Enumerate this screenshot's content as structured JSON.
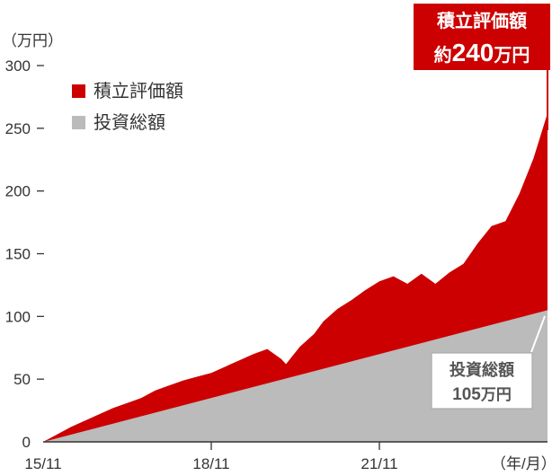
{
  "chart_data": {
    "type": "area",
    "y_unit_label": "（万円）",
    "x_unit_label": "（年/月）",
    "ylim": [
      0,
      300
    ],
    "yticks": [
      "0",
      "50",
      "100",
      "150",
      "200",
      "250",
      "300"
    ],
    "xticks": [
      "15/11",
      "18/11",
      "21/11"
    ],
    "xlim": [
      "15/11",
      "24/11"
    ],
    "grid": false,
    "legend_position": "top-left",
    "legend": [
      "積立評価額",
      "投資総額"
    ],
    "colors": {
      "valuation": "#cc0000",
      "invested": "#bbbbbb",
      "axis": "#333333"
    },
    "series": [
      {
        "name": "積立評価額",
        "x": [
          "15/11",
          "16/02",
          "16/05",
          "16/08",
          "16/11",
          "17/02",
          "17/05",
          "17/08",
          "17/11",
          "18/02",
          "18/05",
          "18/08",
          "18/11",
          "19/02",
          "19/05",
          "19/08",
          "19/11",
          "20/02",
          "20/03",
          "20/06",
          "20/09",
          "20/11",
          "21/02",
          "21/05",
          "21/08",
          "21/11",
          "22/02",
          "22/05",
          "22/08",
          "22/11",
          "23/02",
          "23/05",
          "23/08",
          "23/11",
          "24/02",
          "24/05",
          "24/08",
          "24/11"
        ],
        "values": [
          0,
          6,
          12,
          17,
          22,
          27,
          31,
          35,
          41,
          45,
          49,
          52,
          55,
          60,
          65,
          70,
          74,
          66,
          62,
          76,
          86,
          96,
          106,
          113,
          121,
          128,
          132,
          126,
          134,
          126,
          135,
          142,
          158,
          172,
          176,
          198,
          226,
          262
        ]
      },
      {
        "name": "投資総額",
        "x": [
          "15/11",
          "24/11"
        ],
        "values": [
          0,
          105
        ]
      }
    ],
    "callouts": {
      "valuation": {
        "title": "積立評価額",
        "prefix": "約",
        "value": "240",
        "unit": "万円"
      },
      "invested": {
        "title": "投資総額",
        "value": "105",
        "unit": "万円"
      }
    }
  }
}
